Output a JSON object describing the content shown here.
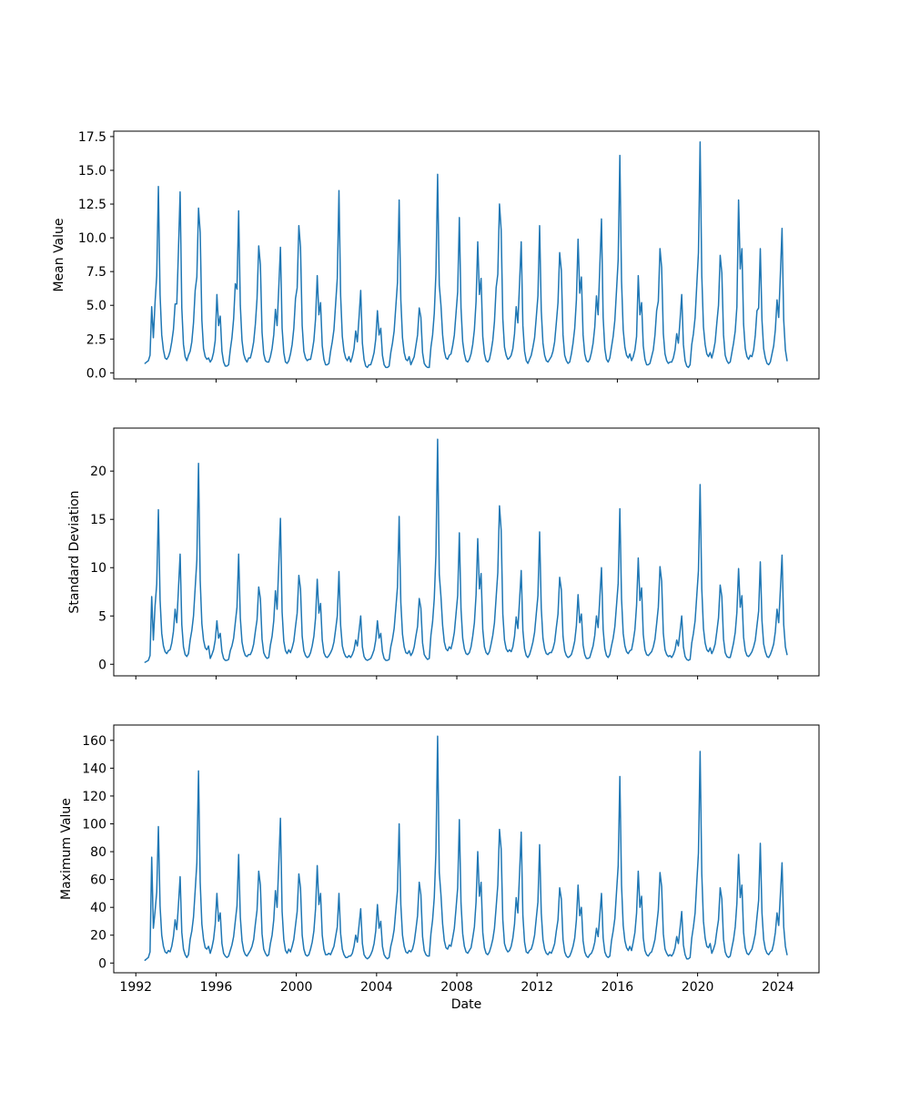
{
  "figure": {
    "background": "#ffffff",
    "line_color": "#1f77b4",
    "xlabel": "Date",
    "x_ticks": [
      1992,
      1996,
      2000,
      2004,
      2008,
      2012,
      2016,
      2020,
      2024
    ],
    "x_tick_labels": [
      "1992",
      "1996",
      "2000",
      "2004",
      "2008",
      "2012",
      "2016",
      "2020",
      "2024"
    ],
    "xlim": [
      1990.9,
      2026.05
    ],
    "x_start_decimal_year": 1992.4583,
    "x_interval": "1 month"
  },
  "chart_data": [
    {
      "type": "line",
      "ylabel": "Mean Value",
      "yticks": [
        0.0,
        2.5,
        5.0,
        7.5,
        10.0,
        12.5,
        15.0,
        17.5
      ],
      "ytick_labels": [
        "0.0",
        "2.5",
        "5.0",
        "7.5",
        "10.0",
        "12.5",
        "15.0",
        "17.5"
      ],
      "ylim": [
        -0.45,
        17.9
      ],
      "grid": false,
      "legend": "none",
      "values": [
        0.7,
        0.8,
        0.9,
        1.3,
        4.9,
        2.6,
        5.2,
        7.2,
        13.8,
        5.8,
        2.8,
        1.7,
        1.1,
        1.0,
        1.2,
        1.6,
        2.3,
        3.2,
        5.1,
        5.1,
        9.1,
        13.4,
        4.8,
        2.1,
        1.2,
        0.9,
        1.3,
        1.6,
        2.3,
        3.7,
        6.1,
        7.1,
        12.2,
        10.4,
        3.9,
        1.8,
        1.2,
        1.0,
        1.1,
        0.8,
        1.0,
        1.5,
        2.4,
        5.8,
        3.5,
        4.2,
        1.6,
        0.8,
        0.5,
        0.5,
        0.6,
        1.7,
        2.6,
        4.0,
        6.6,
        6.2,
        12.0,
        5.0,
        2.4,
        1.4,
        1.0,
        0.8,
        1.1,
        1.1,
        1.6,
        2.3,
        3.6,
        5.5,
        9.4,
        8.0,
        3.0,
        1.4,
        0.9,
        0.8,
        0.8,
        1.2,
        1.8,
        2.8,
        4.7,
        3.5,
        6.3,
        9.3,
        3.3,
        1.5,
        0.8,
        0.7,
        0.9,
        1.4,
        2.1,
        3.3,
        5.5,
        6.3,
        10.9,
        9.3,
        3.5,
        1.6,
        1.1,
        0.9,
        1.0,
        1.0,
        1.6,
        2.4,
        4.0,
        7.2,
        4.3,
        5.2,
        2.0,
        1.0,
        0.6,
        0.6,
        0.7,
        1.6,
        2.3,
        3.2,
        5.1,
        7.0,
        13.5,
        5.7,
        2.7,
        1.6,
        1.1,
        0.9,
        1.2,
        0.8,
        1.2,
        1.8,
        3.1,
        2.3,
        4.1,
        6.1,
        2.2,
        1.0,
        0.5,
        0.4,
        0.6,
        0.6,
        1.0,
        1.5,
        2.5,
        4.6,
        2.8,
        3.3,
        1.3,
        0.6,
        0.4,
        0.4,
        0.5,
        1.5,
        2.2,
        3.1,
        4.9,
        6.7,
        12.8,
        5.4,
        2.6,
        1.5,
        1.0,
        0.9,
        1.2,
        0.6,
        0.9,
        1.2,
        2.0,
        2.8,
        4.8,
        4.1,
        1.5,
        0.7,
        0.5,
        0.4,
        0.4,
        1.9,
        2.8,
        4.4,
        7.4,
        14.7,
        6.5,
        5.0,
        2.8,
        1.6,
        1.1,
        1.0,
        1.3,
        1.4,
        2.0,
        2.8,
        4.4,
        6.0,
        11.5,
        4.8,
        2.3,
        1.4,
        0.9,
        0.8,
        1.0,
        1.4,
        2.1,
        3.2,
        5.3,
        9.7,
        5.8,
        7.0,
        2.7,
        1.4,
        0.9,
        0.8,
        1.0,
        1.6,
        2.4,
        3.8,
        6.3,
        7.3,
        12.5,
        10.6,
        4.0,
        1.9,
        1.3,
        1.0,
        1.1,
        1.3,
        1.8,
        2.9,
        4.9,
        3.7,
        6.6,
        9.7,
        3.5,
        1.6,
        0.9,
        0.7,
        1.0,
        1.3,
        1.9,
        2.6,
        4.1,
        5.7,
        10.9,
        4.6,
        2.2,
        1.3,
        0.9,
        0.8,
        1.0,
        1.2,
        1.6,
        2.3,
        3.7,
        5.2,
        8.9,
        7.6,
        2.8,
        1.3,
        0.9,
        0.7,
        0.8,
        1.4,
        2.2,
        3.3,
        5.4,
        9.9,
        5.9,
        7.1,
        2.8,
        1.4,
        0.9,
        0.8,
        1.0,
        1.5,
        2.2,
        3.4,
        5.7,
        4.3,
        7.8,
        11.4,
        4.1,
        1.8,
        1.0,
        0.8,
        1.1,
        1.9,
        2.7,
        3.9,
        6.1,
        8.4,
        16.1,
        6.8,
        3.2,
        1.9,
        1.3,
        1.1,
        1.4,
        0.9,
        1.2,
        1.7,
        2.7,
        7.2,
        4.3,
        5.2,
        2.0,
        1.0,
        0.6,
        0.6,
        0.7,
        1.2,
        1.7,
        2.8,
        4.6,
        5.3,
        9.2,
        7.8,
        2.9,
        1.4,
        0.9,
        0.7,
        0.8,
        0.8,
        1.1,
        1.7,
        2.9,
        2.2,
        3.9,
        5.8,
        2.1,
        0.9,
        0.5,
        0.4,
        0.6,
        2.1,
        2.9,
        4.1,
        6.5,
        8.9,
        17.1,
        7.2,
        3.4,
        2.1,
        1.4,
        1.2,
        1.5,
        1.1,
        1.6,
        2.3,
        3.7,
        5.0,
        8.7,
        7.4,
        2.8,
        1.3,
        0.9,
        0.7,
        0.8,
        1.5,
        2.2,
        3.1,
        4.9,
        12.8,
        7.7,
        9.2,
        3.6,
        1.8,
        1.2,
        1.0,
        1.3,
        1.2,
        1.7,
        2.8,
        4.6,
        4.8,
        9.2,
        3.9,
        1.8,
        1.1,
        0.7,
        0.6,
        0.8,
        1.4,
        2.0,
        3.2,
        5.4,
        4.1,
        7.3,
        10.7,
        3.9,
        1.7,
        0.9
      ]
    },
    {
      "type": "line",
      "ylabel": "Standard Deviation",
      "yticks": [
        0,
        5,
        10,
        15,
        20
      ],
      "ytick_labels": [
        "0",
        "5",
        "10",
        "15",
        "20"
      ],
      "ylim": [
        -1.2,
        24.45
      ],
      "grid": false,
      "legend": "none",
      "values": [
        0.2,
        0.3,
        0.4,
        0.9,
        7.0,
        2.5,
        6.0,
        8.3,
        16.0,
        6.7,
        3.2,
        1.9,
        1.3,
        1.1,
        1.4,
        1.5,
        2.2,
        3.4,
        5.7,
        4.3,
        7.8,
        11.4,
        4.1,
        1.8,
        1.0,
        0.8,
        1.1,
        2.5,
        3.5,
        5.0,
        7.9,
        10.8,
        20.8,
        8.7,
        4.2,
        2.5,
        1.7,
        1.5,
        1.9,
        0.6,
        1.0,
        1.5,
        2.5,
        4.5,
        2.7,
        3.2,
        1.3,
        0.6,
        0.4,
        0.4,
        0.5,
        1.4,
        1.9,
        2.7,
        4.3,
        5.9,
        11.4,
        4.8,
        2.3,
        1.4,
        0.9,
        0.8,
        1.0,
        1.0,
        1.4,
        2.1,
        3.4,
        4.6,
        8.0,
        6.8,
        2.6,
        1.2,
        0.8,
        0.6,
        0.7,
        2.0,
        2.9,
        4.5,
        7.6,
        5.7,
        10.3,
        15.1,
        5.4,
        2.4,
        1.4,
        1.1,
        1.5,
        1.2,
        1.7,
        2.4,
        3.9,
        5.3,
        9.2,
        7.8,
        2.9,
        1.4,
        0.9,
        0.7,
        0.8,
        1.2,
        1.9,
        2.9,
        4.8,
        8.8,
        5.3,
        6.3,
        2.5,
        1.2,
        0.8,
        0.7,
        0.9,
        1.2,
        1.6,
        2.3,
        3.6,
        5.0,
        9.6,
        4.0,
        1.9,
        1.2,
        0.8,
        0.7,
        0.9,
        0.7,
        1.0,
        1.5,
        2.5,
        1.9,
        3.4,
        5.0,
        1.8,
        0.8,
        0.5,
        0.4,
        0.5,
        0.6,
        1.0,
        1.5,
        2.5,
        4.5,
        2.7,
        3.2,
        1.3,
        0.6,
        0.4,
        0.4,
        0.5,
        1.8,
        2.6,
        3.7,
        5.8,
        8.0,
        15.3,
        6.4,
        3.1,
        1.8,
        1.2,
        1.1,
        1.4,
        0.9,
        1.2,
        1.8,
        2.9,
        3.9,
        6.8,
        5.8,
        2.2,
        1.0,
        0.7,
        0.5,
        0.6,
        3.0,
        4.4,
        6.8,
        11.4,
        23.3,
        9.3,
        7.0,
        4.0,
        2.3,
        1.6,
        1.4,
        1.8,
        1.6,
        2.3,
        3.3,
        5.2,
        7.1,
        13.6,
        5.7,
        2.7,
        1.6,
        1.1,
        1.0,
        1.2,
        1.8,
        2.9,
        4.3,
        7.2,
        13.0,
        7.8,
        9.4,
        3.6,
        1.8,
        1.2,
        1.0,
        1.3,
        2.1,
        3.0,
        4.3,
        6.9,
        9.5,
        16.4,
        13.9,
        5.2,
        2.5,
        1.6,
        1.3,
        1.5,
        1.3,
        1.8,
        2.9,
        4.9,
        3.7,
        6.6,
        9.7,
        3.5,
        1.6,
        0.9,
        0.7,
        1.0,
        1.6,
        2.3,
        3.3,
        5.2,
        7.1,
        13.7,
        5.8,
        2.7,
        1.6,
        1.1,
        1.0,
        1.2,
        1.2,
        1.6,
        2.3,
        3.8,
        5.2,
        9.0,
        7.7,
        2.9,
        1.4,
        0.9,
        0.7,
        0.8,
        1.0,
        1.6,
        2.4,
        4.0,
        7.2,
        4.3,
        5.2,
        2.0,
        1.0,
        0.6,
        0.6,
        0.7,
        1.3,
        1.9,
        3.0,
        5.0,
        3.8,
        6.8,
        10.0,
        3.6,
        1.6,
        0.9,
        0.7,
        1.0,
        1.9,
        2.7,
        3.9,
        6.1,
        8.4,
        16.1,
        6.8,
        3.2,
        1.9,
        1.3,
        1.1,
        1.4,
        1.5,
        2.4,
        3.6,
        6.1,
        11.0,
        6.6,
        7.9,
        3.1,
        1.5,
        1.0,
        0.9,
        1.1,
        1.3,
        1.8,
        2.6,
        4.2,
        5.9,
        10.1,
        8.6,
        3.2,
        1.5,
        1.0,
        0.8,
        0.9,
        0.7,
        1.0,
        1.5,
        2.5,
        1.9,
        3.4,
        5.0,
        1.8,
        0.8,
        0.5,
        0.4,
        0.5,
        2.2,
        3.2,
        4.5,
        7.1,
        9.7,
        18.6,
        7.8,
        3.7,
        2.2,
        1.5,
        1.3,
        1.7,
        1.1,
        1.5,
        2.1,
        3.4,
        4.8,
        8.2,
        7.0,
        2.6,
        1.2,
        0.8,
        0.7,
        0.7,
        1.4,
        2.2,
        3.3,
        5.4,
        9.9,
        5.9,
        7.1,
        2.8,
        1.4,
        0.9,
        0.8,
        1.0,
        1.3,
        1.8,
        2.5,
        4.0,
        5.5,
        10.6,
        4.5,
        2.1,
        1.3,
        0.8,
        0.7,
        1.0,
        1.5,
        2.1,
        3.4,
        5.7,
        4.3,
        7.7,
        11.3,
        4.1,
        1.8,
        1.0
      ]
    },
    {
      "type": "line",
      "ylabel": "Maximum Value",
      "xlabel": "Date",
      "yticks": [
        0,
        20,
        40,
        60,
        80,
        100,
        120,
        140,
        160
      ],
      "ytick_labels": [
        "0",
        "20",
        "40",
        "60",
        "80",
        "100",
        "120",
        "140",
        "160"
      ],
      "ylim": [
        -7,
        171
      ],
      "grid": false,
      "legend": "none",
      "values": [
        2,
        3,
        4,
        8,
        76,
        25,
        37,
        51,
        98,
        41,
        20,
        12,
        8,
        7,
        9,
        8,
        12,
        19,
        31,
        24,
        42,
        62,
        22,
        10,
        6,
        4,
        6,
        17,
        23,
        33,
        52,
        72,
        138,
        58,
        28,
        17,
        11,
        10,
        12,
        7,
        11,
        17,
        28,
        50,
        30,
        36,
        14,
        7,
        5,
        4,
        5,
        9,
        13,
        19,
        30,
        41,
        78,
        33,
        16,
        9,
        6,
        5,
        7,
        9,
        12,
        17,
        28,
        38,
        66,
        56,
        21,
        10,
        7,
        5,
        6,
        14,
        20,
        31,
        52,
        40,
        71,
        104,
        37,
        17,
        9,
        7,
        10,
        8,
        12,
        17,
        27,
        37,
        64,
        54,
        20,
        10,
        6,
        5,
        6,
        10,
        15,
        23,
        39,
        70,
        42,
        50,
        20,
        10,
        6,
        6,
        7,
        6,
        9,
        12,
        19,
        26,
        50,
        21,
        10,
        6,
        4,
        4,
        5,
        5,
        7,
        12,
        20,
        15,
        27,
        39,
        14,
        6,
        4,
        3,
        4,
        6,
        9,
        14,
        23,
        42,
        25,
        30,
        12,
        6,
        4,
        3,
        4,
        12,
        17,
        24,
        38,
        52,
        100,
        42,
        20,
        12,
        8,
        7,
        9,
        8,
        10,
        15,
        24,
        34,
        58,
        49,
        19,
        9,
        6,
        5,
        5,
        21,
        31,
        47,
        80,
        163,
        65,
        49,
        28,
        16,
        11,
        10,
        13,
        12,
        18,
        25,
        39,
        54,
        103,
        43,
        21,
        12,
        8,
        7,
        9,
        11,
        18,
        26,
        44,
        80,
        48,
        58,
        22,
        11,
        7,
        6,
        8,
        12,
        17,
        25,
        40,
        56,
        96,
        82,
        31,
        14,
        10,
        8,
        9,
        12,
        18,
        28,
        47,
        36,
        64,
        94,
        34,
        15,
        8,
        7,
        9,
        10,
        14,
        20,
        32,
        44,
        85,
        36,
        17,
        10,
        7,
        6,
        8,
        7,
        10,
        14,
        23,
        31,
        54,
        46,
        17,
        8,
        5,
        4,
        5,
        8,
        12,
        18,
        31,
        56,
        34,
        40,
        16,
        8,
        5,
        4,
        6,
        7,
        10,
        15,
        25,
        19,
        34,
        50,
        18,
        8,
        5,
        4,
        5,
        16,
        23,
        32,
        51,
        70,
        134,
        56,
        27,
        16,
        11,
        9,
        12,
        9,
        15,
        22,
        36,
        66,
        40,
        48,
        18,
        9,
        6,
        5,
        7,
        8,
        12,
        17,
        27,
        38,
        65,
        55,
        21,
        10,
        7,
        5,
        6,
        5,
        7,
        11,
        19,
        14,
        25,
        37,
        13,
        6,
        3,
        3,
        4,
        18,
        26,
        36,
        58,
        79,
        152,
        64,
        30,
        18,
        12,
        11,
        14,
        7,
        10,
        14,
        23,
        31,
        54,
        46,
        17,
        8,
        5,
        4,
        5,
        11,
        17,
        26,
        43,
        78,
        47,
        56,
        22,
        11,
        7,
        6,
        8,
        10,
        15,
        21,
        33,
        45,
        86,
        36,
        17,
        10,
        7,
        6,
        8,
        9,
        14,
        22,
        36,
        27,
        49,
        72,
        26,
        12,
        6
      ]
    }
  ]
}
